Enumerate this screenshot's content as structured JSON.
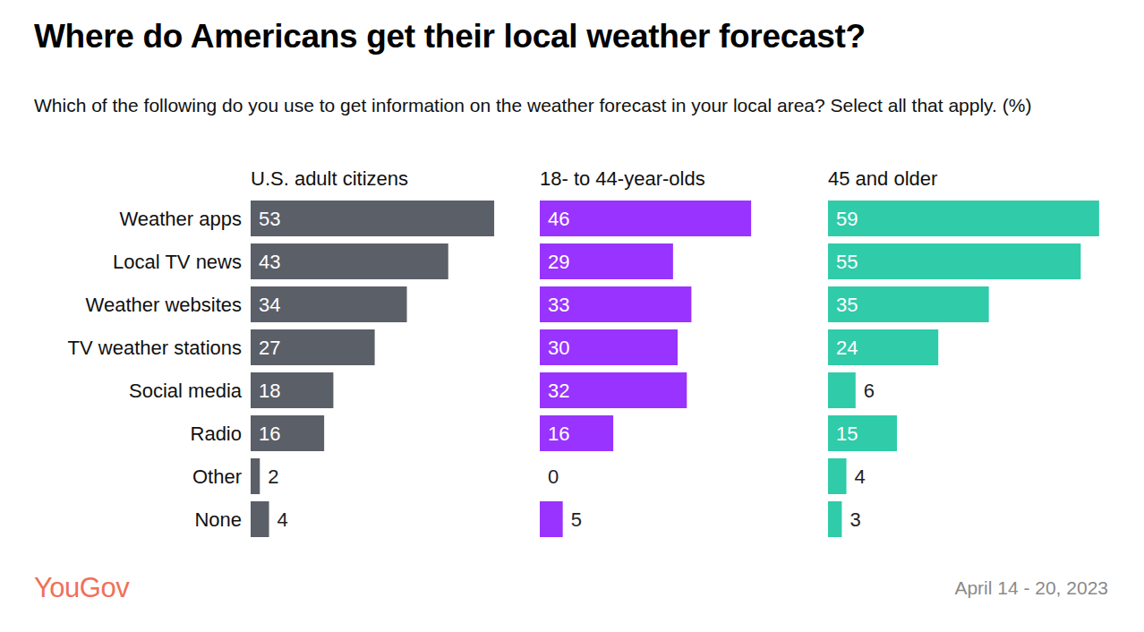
{
  "chart_data": {
    "type": "bar",
    "orientation": "horizontal",
    "data_labels": true,
    "tick_labels": false,
    "title": "Where do Americans get their local weather forecast?",
    "subtitle": "Which of the following do you use to get information on the weather forecast in your local area? Select all that apply. (%)",
    "annotations": [
      "YouGov",
      "April 14 - 20, 2023"
    ],
    "categories": [
      "Weather apps",
      "Local TV news",
      "Weather websites",
      "TV weather stations",
      "Social media",
      "Radio",
      "Other",
      "None"
    ],
    "xlim": [
      0,
      60
    ],
    "series": [
      {
        "name": "U.S. adult citizens",
        "color": "#5b5f68",
        "values": [
          53,
          43,
          34,
          27,
          18,
          16,
          2,
          4
        ]
      },
      {
        "name": "18- to 44-year-olds",
        "color": "#9933ff",
        "values": [
          46,
          29,
          33,
          30,
          32,
          16,
          0,
          5
        ]
      },
      {
        "name": "45 and older",
        "color": "#30cba9",
        "values": [
          59,
          55,
          35,
          24,
          6,
          15,
          4,
          3
        ]
      }
    ]
  }
}
